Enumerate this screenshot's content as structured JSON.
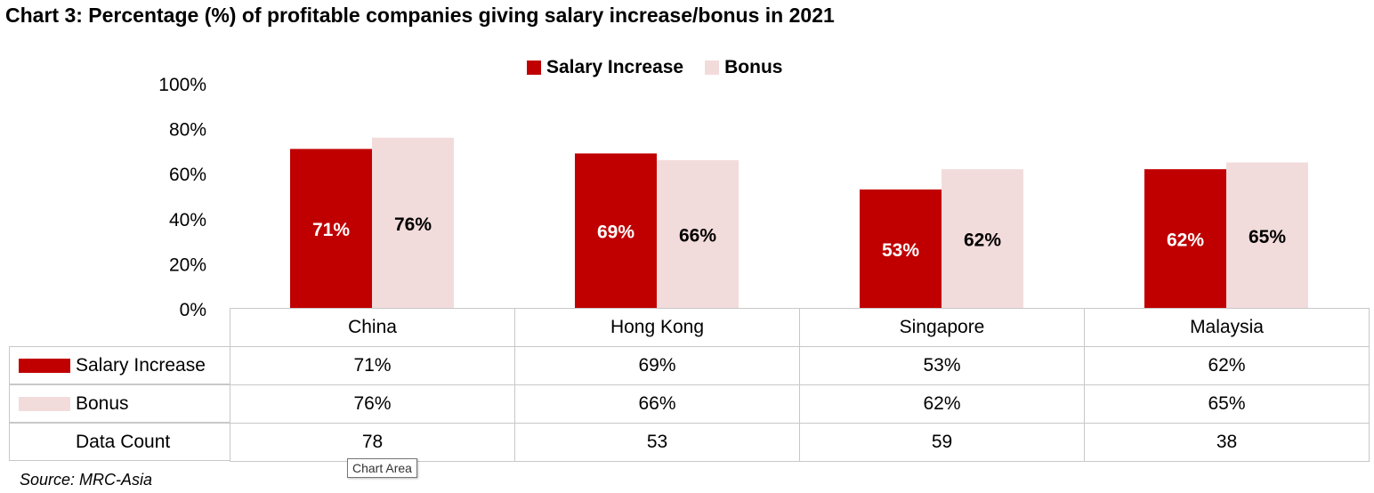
{
  "chart_data": {
    "type": "bar",
    "title": "Chart 3: Percentage (%) of profitable companies giving salary increase/bonus in 2021",
    "categories": [
      "China",
      "Hong Kong",
      "Singapore",
      "Malaysia"
    ],
    "series": [
      {
        "name": "Salary Increase",
        "values": [
          71,
          69,
          53,
          62
        ],
        "labels": [
          "71%",
          "69%",
          "53%",
          "62%"
        ],
        "color": "#C00000",
        "label_color": "#ffffff"
      },
      {
        "name": "Bonus",
        "values": [
          76,
          66,
          62,
          65
        ],
        "labels": [
          "76%",
          "66%",
          "62%",
          "65%"
        ],
        "color": "#F2DCDB",
        "label_color": "#000000"
      }
    ],
    "ylim": [
      0,
      100
    ],
    "yticks": [
      0,
      20,
      40,
      60,
      80,
      100
    ],
    "ytick_labels": [
      "0%",
      "20%",
      "40%",
      "60%",
      "80%",
      "100%"
    ],
    "legend_position": "top-center",
    "grid": false,
    "data_table": {
      "rows": [
        {
          "label": "Salary Increase",
          "cells": [
            "71%",
            "69%",
            "53%",
            "62%"
          ],
          "swatch": "#C00000"
        },
        {
          "label": "Bonus",
          "cells": [
            "76%",
            "66%",
            "62%",
            "65%"
          ],
          "swatch": "#F2DCDB"
        },
        {
          "label": "Data Count",
          "cells": [
            "78",
            "53",
            "59",
            "38"
          ]
        }
      ]
    }
  },
  "tooltip": "Chart Area",
  "source": "Source: MRC-Asia"
}
